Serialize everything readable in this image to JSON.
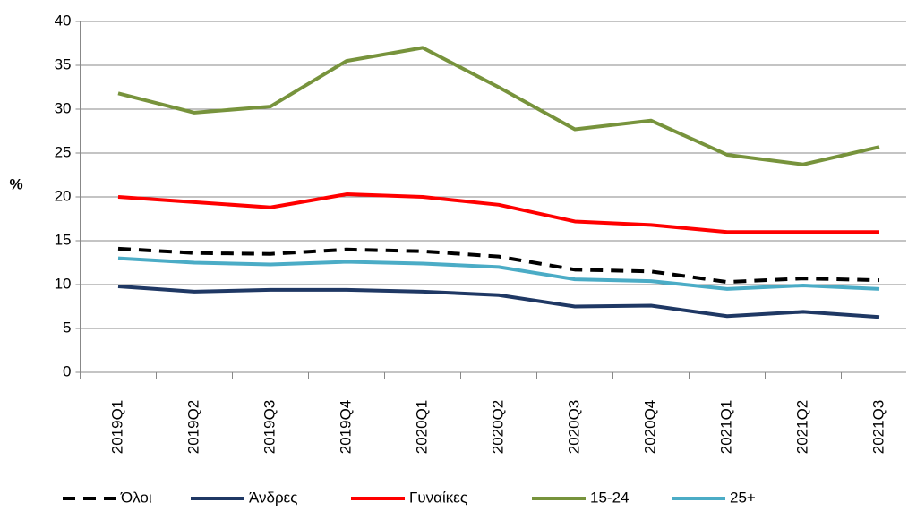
{
  "chart_data": {
    "type": "line",
    "categories": [
      "2019Q1",
      "2019Q2",
      "2019Q3",
      "2019Q4",
      "2020Q1",
      "2020Q2",
      "2020Q3",
      "2020Q4",
      "2021Q1",
      "2021Q2",
      "2021Q3"
    ],
    "y_label": "%",
    "ylim": [
      0,
      40
    ],
    "yticks": [
      0,
      5,
      10,
      15,
      20,
      25,
      30,
      35,
      40
    ],
    "grid": true,
    "legend": "bottom",
    "series": [
      {
        "name": "Όλοι",
        "color": "#000000",
        "dashed": true,
        "values": [
          14.1,
          13.6,
          13.5,
          14.0,
          13.8,
          13.2,
          11.7,
          11.5,
          10.3,
          10.7,
          10.5
        ]
      },
      {
        "name": "Άνδρες",
        "color": "#1f3864",
        "values": [
          9.8,
          9.2,
          9.4,
          9.4,
          9.2,
          8.8,
          7.5,
          7.6,
          6.4,
          6.9,
          6.3
        ]
      },
      {
        "name": "Γυναίκες",
        "color": "#ff0000",
        "values": [
          20.0,
          19.4,
          18.8,
          20.3,
          20.0,
          19.1,
          17.2,
          16.8,
          16.0,
          16.0,
          16.0
        ]
      },
      {
        "name": "15-24",
        "color": "#77933c",
        "values": [
          31.8,
          29.6,
          30.3,
          35.5,
          37.0,
          32.5,
          27.7,
          28.7,
          24.8,
          23.7,
          25.7
        ]
      },
      {
        "name": "25+",
        "color": "#4bacc6",
        "values": [
          13.0,
          12.5,
          12.3,
          12.6,
          12.4,
          12.0,
          10.6,
          10.4,
          9.5,
          9.9,
          9.5
        ]
      }
    ]
  }
}
